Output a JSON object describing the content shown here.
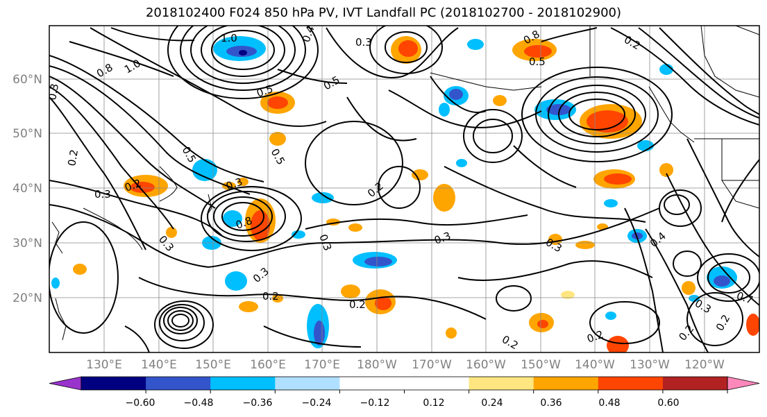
{
  "title": "2018102400 F024 850 hPa PV, IVT Landfall PC (2018102700 - 2018102900)",
  "lat_labels": [
    "60°N",
    "50°N",
    "40°N",
    "30°N",
    "20°N"
  ],
  "lon_labels": [
    "130°E",
    "140°E",
    "150°E",
    "160°E",
    "170°E",
    "180°W",
    "170°W",
    "160°W",
    "150°W",
    "140°W",
    "130°W",
    "120°W"
  ],
  "colorbar": {
    "colors": [
      "#9933cc",
      "#000080",
      "#3355cc",
      "#00bfff",
      "#b0e0ff",
      "#ffffff",
      "#ffffff",
      "#ffe680",
      "#ffa500",
      "#ff4500",
      "#b22222",
      "#ff88bb"
    ],
    "tick_labels": [
      "−0.60",
      "−0.48",
      "−0.36",
      "−0.24",
      "−0.12",
      "0.12",
      "0.24",
      "0.36",
      "0.48",
      "0.60"
    ]
  },
  "contour_labels": [
    "1.0",
    "0.3",
    "0.4",
    "0.8",
    "0.5",
    "0.2",
    "0.8",
    "1.0",
    "0.5",
    "0.3",
    "0.5",
    "0.2",
    "0.5",
    "0.5",
    "0.3",
    "0.2",
    "0.3",
    "0.8",
    "0.3",
    "0.3",
    "0.2",
    "0.3",
    "0.2",
    "0.2",
    "0.2",
    "0.3",
    "0.3",
    "0.4",
    "0.2",
    "0.2",
    "0.3",
    "0.7",
    "0.2"
  ]
}
